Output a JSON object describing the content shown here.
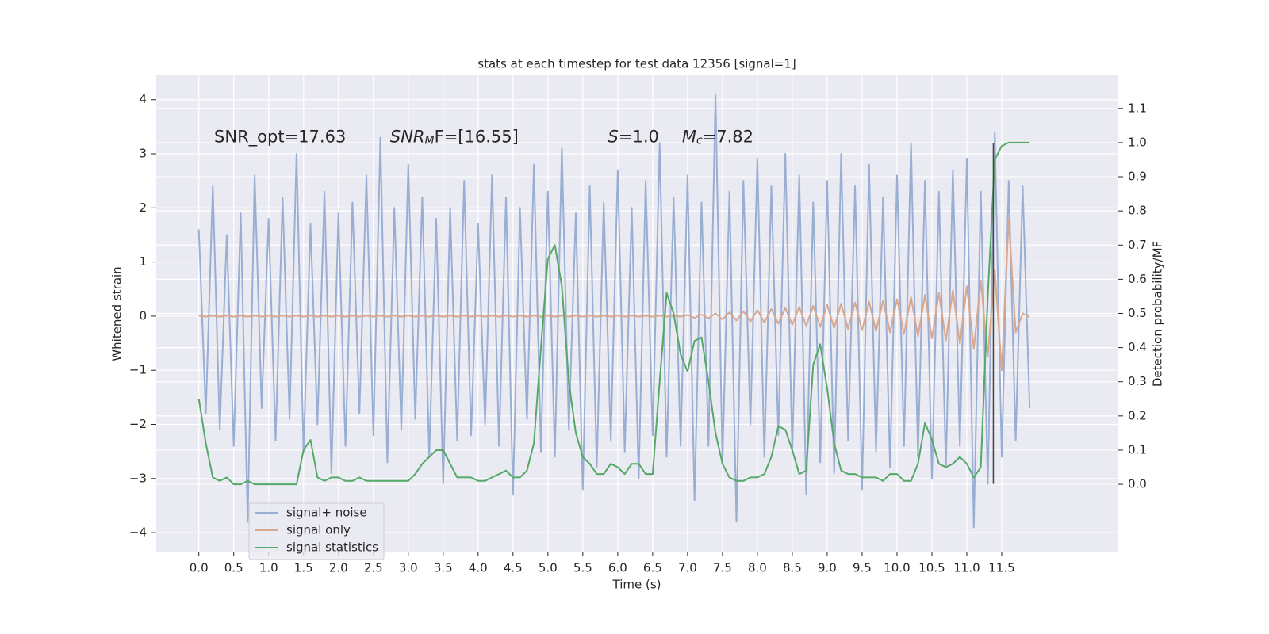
{
  "chart_data": {
    "type": "line",
    "title": "stats at each timestep for test data 12356 [signal=1]",
    "xlabel": "Time (s)",
    "ylabel": "Whitened strain",
    "y2label": "Detection probability/MF",
    "background": "#eaeaf2",
    "grid": true,
    "legend": "lower left",
    "xlim": [
      -0.61,
      13.17
    ],
    "ylim": [
      -4.35,
      4.45
    ],
    "y2lim": [
      -0.197,
      1.197
    ],
    "xticks": [
      {
        "value": 0,
        "label": "0.0"
      },
      0.5,
      {
        "value": 1,
        "label": "1.0"
      },
      1.5,
      {
        "value": 2,
        "label": "2.0"
      },
      2.5,
      {
        "value": 3,
        "label": "3.0"
      },
      3.5,
      {
        "value": 4,
        "label": "4.0"
      },
      4.5,
      {
        "value": 5,
        "label": "5.0"
      },
      5.5,
      {
        "value": 6,
        "label": "6.0"
      },
      6.5,
      {
        "value": 7,
        "label": "7.0"
      },
      7.5,
      {
        "value": 8,
        "label": "8.0"
      },
      8.5,
      {
        "value": 9,
        "label": "9.0"
      },
      9.5,
      {
        "value": 10,
        "label": "10.0"
      },
      10.5,
      {
        "value": 11,
        "label": "11.0"
      },
      11.5
    ],
    "yticks": [
      {
        "value": -4,
        "label": "−4"
      },
      {
        "value": -3,
        "label": "−3"
      },
      {
        "value": -2,
        "label": "−2"
      },
      {
        "value": -1,
        "label": "−1"
      },
      0,
      1,
      2,
      3,
      4
    ],
    "y2ticks": [
      {
        "value": 0,
        "label": "0.0"
      },
      0.1,
      0.2,
      0.3,
      0.4,
      0.5,
      0.6,
      0.7,
      0.8,
      0.9,
      {
        "value": 1,
        "label": "1.0"
      },
      1.1
    ],
    "x": [
      0,
      0.1,
      0.2,
      0.3,
      0.4,
      0.5,
      0.6,
      0.7,
      0.8,
      0.9,
      1,
      1.1,
      1.2,
      1.3,
      1.4,
      1.5,
      1.6,
      1.7,
      1.8,
      1.9,
      2,
      2.1,
      2.2,
      2.3,
      2.4,
      2.5,
      2.6,
      2.7,
      2.8,
      2.9,
      3,
      3.1,
      3.2,
      3.3,
      3.4,
      3.5,
      3.6,
      3.7,
      3.8,
      3.9,
      4,
      4.1,
      4.2,
      4.3,
      4.4,
      4.5,
      4.6,
      4.7,
      4.8,
      4.9,
      5,
      5.1,
      5.2,
      5.3,
      5.4,
      5.5,
      5.6,
      5.7,
      5.8,
      5.9,
      6,
      6.1,
      6.2,
      6.3,
      6.4,
      6.5,
      6.6,
      6.7,
      6.8,
      6.9,
      7,
      7.1,
      7.2,
      7.3,
      7.4,
      7.5,
      7.6,
      7.7,
      7.8,
      7.9,
      8,
      8.1,
      8.2,
      8.3,
      8.4,
      8.5,
      8.6,
      8.7,
      8.8,
      8.9,
      9,
      9.1,
      9.2,
      9.3,
      9.4,
      9.5,
      9.6,
      9.7,
      9.8,
      9.9,
      10,
      10.1,
      10.2,
      10.3,
      10.4,
      10.5,
      10.6,
      10.7,
      10.8,
      10.9,
      11,
      11.1,
      11.2,
      11.3,
      11.4,
      11.5,
      11.6,
      11.7,
      11.8,
      11.9
    ],
    "series": [
      {
        "name": "signal+ noise",
        "color": "#9aaed4",
        "axis": "y",
        "width": 2,
        "values": [
          1.6,
          -1.8,
          2.4,
          -2.1,
          1.5,
          -2.4,
          1.9,
          -3.8,
          2.6,
          -1.7,
          1.8,
          -2.3,
          2.2,
          -1.9,
          3.0,
          -2.5,
          1.7,
          -2.0,
          2.3,
          -2.9,
          1.9,
          -2.4,
          2.1,
          -1.8,
          2.6,
          -2.2,
          3.3,
          -2.7,
          2.0,
          -2.1,
          2.8,
          -1.9,
          2.2,
          -2.6,
          1.8,
          -3.1,
          2.0,
          -2.3,
          2.5,
          -2.2,
          1.7,
          -2.0,
          2.6,
          -2.4,
          2.2,
          -3.3,
          2.0,
          -1.9,
          2.8,
          -2.5,
          2.3,
          -2.6,
          3.1,
          -2.1,
          1.9,
          -3.2,
          2.4,
          -2.8,
          2.1,
          -2.3,
          2.7,
          -2.5,
          2.0,
          -3.0,
          2.5,
          -2.2,
          3.2,
          -2.6,
          2.2,
          -2.4,
          2.6,
          -3.4,
          2.1,
          -2.4,
          4.1,
          -2.7,
          2.3,
          -3.8,
          2.5,
          -2.0,
          2.9,
          -2.6,
          2.4,
          -2.2,
          3.0,
          -2.5,
          2.6,
          -3.3,
          2.1,
          -2.7,
          2.5,
          -2.9,
          3.0,
          -2.3,
          2.4,
          -3.2,
          2.8,
          -2.5,
          2.2,
          -2.8,
          2.6,
          -2.4,
          3.2,
          -2.6,
          2.5,
          -3.0,
          2.3,
          -2.8,
          2.7,
          -2.4,
          2.9,
          -3.9,
          2.3,
          -3.1,
          3.4,
          -2.6,
          2.5,
          -2.3,
          2.4,
          -1.7
        ]
      },
      {
        "name": "signal only",
        "color": "#d9a68e",
        "axis": "y",
        "width": 2,
        "values": [
          0.01,
          -0.01,
          0.01,
          -0.01,
          0.01,
          -0.01,
          0.01,
          -0.01,
          0.01,
          -0.01,
          0.01,
          -0.01,
          0.01,
          -0.01,
          0.01,
          -0.01,
          0.01,
          -0.01,
          0.01,
          -0.01,
          0.01,
          -0.01,
          0.01,
          -0.01,
          0.01,
          -0.01,
          0.01,
          -0.01,
          0.01,
          -0.01,
          0.01,
          -0.01,
          0.01,
          -0.01,
          0.01,
          -0.01,
          0.01,
          -0.01,
          0.01,
          -0.01,
          0.01,
          -0.01,
          0.01,
          -0.01,
          0.01,
          -0.01,
          0.01,
          -0.01,
          0.01,
          -0.01,
          0.01,
          -0.01,
          0.01,
          -0.01,
          0.01,
          -0.01,
          0.01,
          -0.01,
          0.01,
          -0.01,
          0.01,
          -0.01,
          0.01,
          -0.01,
          0.01,
          -0.01,
          0.01,
          -0.01,
          0.01,
          -0.01,
          0.02,
          -0.03,
          0.03,
          -0.04,
          0.05,
          -0.06,
          0.07,
          -0.08,
          0.09,
          -0.1,
          0.11,
          -0.12,
          0.13,
          -0.14,
          0.15,
          -0.16,
          0.17,
          -0.18,
          0.19,
          -0.2,
          0.21,
          -0.22,
          0.23,
          -0.24,
          0.25,
          -0.26,
          0.27,
          -0.28,
          0.29,
          -0.3,
          0.31,
          -0.33,
          0.35,
          -0.37,
          0.39,
          -0.41,
          0.43,
          -0.45,
          0.48,
          -0.51,
          0.55,
          -0.6,
          0.66,
          -0.74,
          0.85,
          -1.0,
          1.8,
          -0.3,
          0.05,
          -0.02
        ]
      },
      {
        "name": "signal statistics",
        "color": "#55a868",
        "axis": "y2",
        "width": 2,
        "values": [
          0.25,
          0.12,
          0.02,
          0.01,
          0.02,
          0.0,
          0.0,
          0.01,
          0.0,
          0.0,
          0.0,
          0.0,
          0.0,
          0.0,
          0.0,
          0.1,
          0.13,
          0.02,
          0.01,
          0.02,
          0.02,
          0.01,
          0.01,
          0.02,
          0.01,
          0.01,
          0.01,
          0.01,
          0.01,
          0.01,
          0.01,
          0.03,
          0.06,
          0.08,
          0.1,
          0.1,
          0.06,
          0.02,
          0.02,
          0.02,
          0.01,
          0.01,
          0.02,
          0.03,
          0.04,
          0.02,
          0.02,
          0.04,
          0.12,
          0.4,
          0.66,
          0.7,
          0.58,
          0.3,
          0.15,
          0.08,
          0.06,
          0.03,
          0.03,
          0.06,
          0.05,
          0.03,
          0.06,
          0.06,
          0.03,
          0.03,
          0.3,
          0.56,
          0.5,
          0.38,
          0.33,
          0.42,
          0.43,
          0.3,
          0.15,
          0.06,
          0.02,
          0.01,
          0.01,
          0.02,
          0.02,
          0.03,
          0.08,
          0.17,
          0.16,
          0.1,
          0.03,
          0.04,
          0.35,
          0.41,
          0.28,
          0.12,
          0.04,
          0.03,
          0.03,
          0.02,
          0.02,
          0.02,
          0.01,
          0.03,
          0.03,
          0.01,
          0.01,
          0.06,
          0.18,
          0.13,
          0.06,
          0.05,
          0.06,
          0.08,
          0.06,
          0.02,
          0.05,
          0.55,
          0.95,
          0.99,
          1.0,
          1.0,
          1.0,
          1.0
        ]
      }
    ],
    "vline": {
      "x": 11.38,
      "ymin": -3.1,
      "ymax": 3.2,
      "color": "#444444"
    },
    "annotations": [
      {
        "x": 0.22,
        "y": 3.3,
        "segments": [
          {
            "text": "SNR_opt=17.63"
          }
        ]
      },
      {
        "x": 2.74,
        "y": 3.3,
        "segments": [
          {
            "text": "SNR",
            "italic": true
          },
          {
            "text": "M",
            "italic": true,
            "sub": true
          },
          {
            "text": "F=[16.55]"
          }
        ]
      },
      {
        "x": 5.86,
        "y": 3.3,
        "segments": [
          {
            "text": "S",
            "italic": true
          },
          {
            "text": "=1.0"
          }
        ]
      },
      {
        "x": 6.92,
        "y": 3.3,
        "segments": [
          {
            "text": "M",
            "italic": true
          },
          {
            "text": "c",
            "italic": true,
            "sub": true
          },
          {
            "text": "=7.82"
          }
        ]
      }
    ]
  }
}
